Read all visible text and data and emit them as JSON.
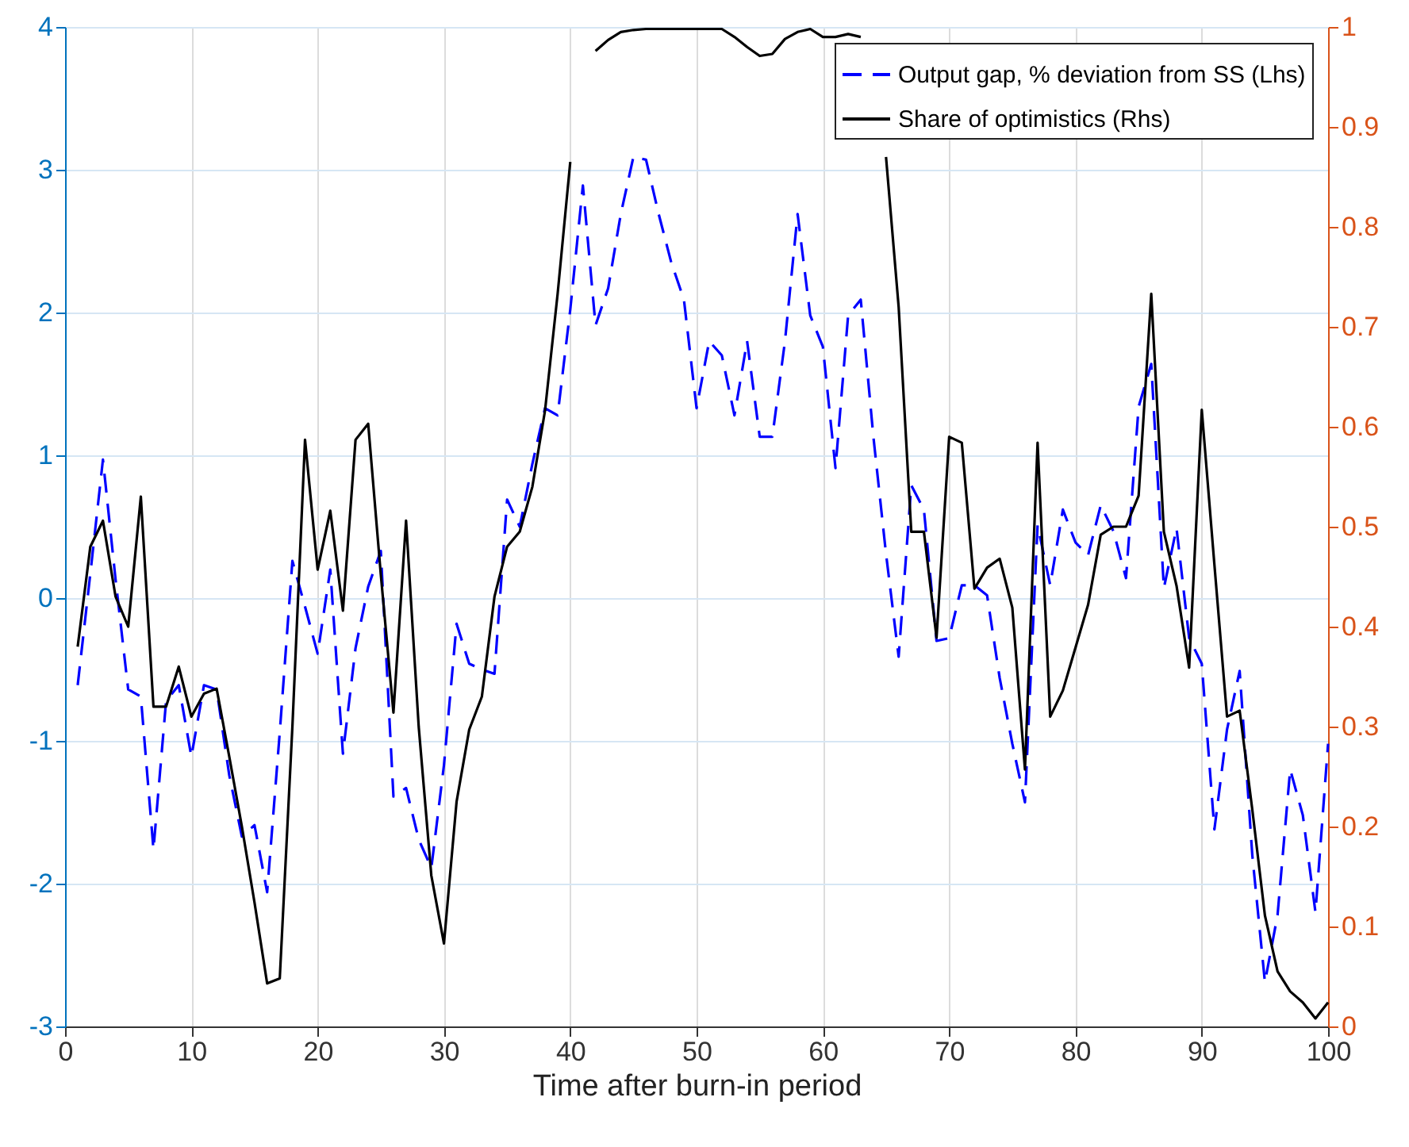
{
  "chart_data": {
    "type": "line",
    "xlabel": "Time after burn-in period",
    "x": [
      1,
      2,
      3,
      4,
      5,
      6,
      7,
      8,
      9,
      10,
      11,
      12,
      13,
      14,
      15,
      16,
      17,
      18,
      19,
      20,
      21,
      22,
      23,
      24,
      25,
      26,
      27,
      28,
      29,
      30,
      31,
      32,
      33,
      34,
      35,
      36,
      37,
      38,
      39,
      40,
      41,
      42,
      43,
      44,
      45,
      46,
      47,
      48,
      49,
      50,
      51,
      52,
      53,
      54,
      55,
      56,
      57,
      58,
      59,
      60,
      61,
      62,
      63,
      64,
      65,
      66,
      67,
      68,
      69,
      70,
      71,
      72,
      73,
      74,
      75,
      76,
      77,
      78,
      79,
      80,
      81,
      82,
      83,
      84,
      85,
      86,
      87,
      88,
      89,
      90,
      91,
      92,
      93,
      94,
      95,
      96,
      97,
      98,
      99,
      100
    ],
    "series": [
      {
        "name": "Output gap, % deviation from SS (Lhs)",
        "color": "#0000ff",
        "line_style": "dashed",
        "values": [
          -0.61,
          0.17,
          0.97,
          0.13,
          -0.64,
          -0.69,
          -1.76,
          -0.72,
          -0.61,
          -1.11,
          -0.61,
          -0.64,
          -1.24,
          -1.67,
          -1.59,
          -2.06,
          -0.94,
          0.26,
          -0.06,
          -0.39,
          0.2,
          -1.09,
          -0.35,
          0.08,
          0.33,
          -1.39,
          -1.33,
          -1.69,
          -1.89,
          -1.17,
          -0.18,
          -0.46,
          -0.5,
          -0.53,
          0.69,
          0.5,
          0.94,
          1.33,
          1.28,
          2.02,
          2.89,
          1.91,
          2.17,
          2.69,
          3.09,
          3.07,
          2.69,
          2.35,
          2.09,
          1.33,
          1.8,
          1.7,
          1.28,
          1.8,
          1.13,
          1.13,
          1.8,
          2.69,
          1.98,
          1.76,
          0.91,
          1.98,
          2.09,
          1.13,
          0.31,
          -0.41,
          0.79,
          0.62,
          -0.3,
          -0.28,
          0.09,
          0.09,
          0.02,
          -0.56,
          -1.02,
          -1.43,
          0.51,
          0.09,
          0.62,
          0.39,
          0.3,
          0.65,
          0.47,
          0.14,
          1.34,
          1.64,
          0.07,
          0.49,
          -0.28,
          -0.46,
          -1.62,
          -0.92,
          -0.51,
          -1.8,
          -2.69,
          -2.22,
          -1.2,
          -1.52,
          -2.2,
          -1.02
        ]
      },
      {
        "name": "Share of optimistics (Rhs)",
        "color": "#000000",
        "line_style": "solid",
        "axis": "y2",
        "values": [
          0.38,
          0.48,
          0.506,
          0.43,
          0.4,
          0.53,
          0.32,
          0.32,
          0.36,
          0.31,
          0.333,
          0.338,
          0.27,
          0.2,
          0.124,
          0.043,
          0.048,
          0.3,
          0.587,
          0.457,
          0.516,
          0.416,
          0.587,
          0.603,
          0.452,
          0.314,
          0.506,
          0.3,
          0.151,
          0.083,
          0.225,
          0.297,
          0.33,
          0.43,
          0.48,
          0.495,
          0.54,
          0.616,
          0.733,
          0.865,
          null,
          0.976,
          0.987,
          0.995,
          0.997,
          0.998,
          0.998,
          0.998,
          0.998,
          0.998,
          0.998,
          0.998,
          0.99,
          0.98,
          0.971,
          0.973,
          0.988,
          0.995,
          0.998,
          0.99,
          0.99,
          0.993,
          0.99,
          null,
          0.87,
          0.72,
          0.495,
          0.495,
          0.389,
          0.59,
          0.584,
          0.438,
          0.459,
          0.468,
          0.419,
          0.257,
          0.584,
          0.31,
          0.336,
          0.379,
          0.422,
          0.492,
          0.5,
          0.5,
          0.531,
          0.733,
          0.495,
          0.441,
          0.359,
          0.617,
          0.462,
          0.31,
          0.316,
          0.217,
          0.111,
          0.055,
          0.035,
          0.024,
          0.008,
          0.024
        ]
      }
    ],
    "xlim": [
      0,
      100
    ],
    "xticks": [
      0,
      10,
      20,
      30,
      40,
      50,
      60,
      70,
      80,
      90,
      100
    ],
    "ylim": [
      -3,
      4
    ],
    "yticks": [
      -3,
      -2,
      -1,
      0,
      1,
      2,
      3,
      4
    ],
    "y2lim": [
      0,
      1
    ],
    "y2ticks": [
      0,
      0.1,
      0.2,
      0.3,
      0.4,
      0.5,
      0.6,
      0.7,
      0.8,
      0.9,
      1
    ],
    "grid": true,
    "legend": "top right",
    "marker": "none"
  }
}
